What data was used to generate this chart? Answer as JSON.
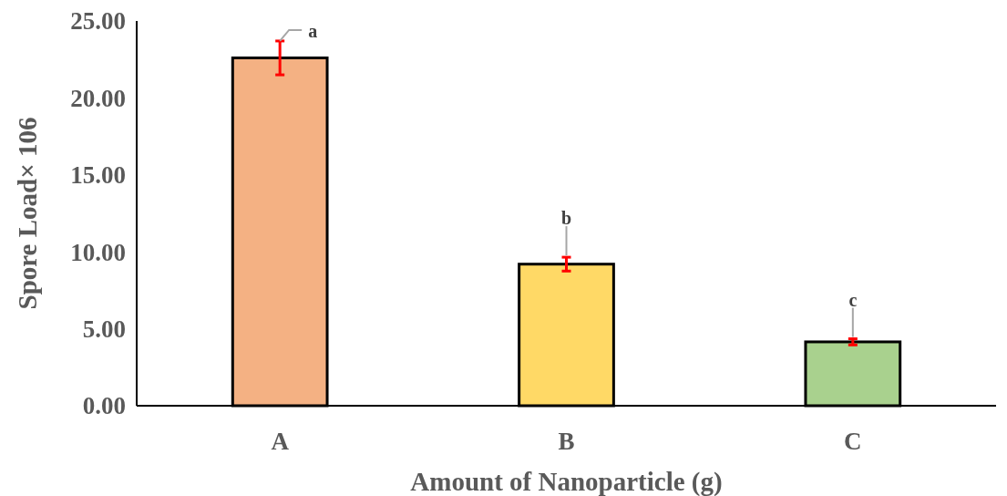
{
  "chart_data": {
    "type": "bar",
    "xlabel": "Amount of Nanoparticle (g)",
    "ylabel": "Spore Load× 106",
    "categories": [
      "A",
      "B",
      "C"
    ],
    "values": [
      22.6,
      9.2,
      4.15
    ],
    "colors": [
      "#f4b183",
      "#ffd966",
      "#a9d18e"
    ],
    "errors": [
      1.1,
      0.45,
      0.2
    ],
    "ylim": [
      0,
      25
    ],
    "yticks": [
      {
        "value": 0,
        "label": "0.00"
      },
      {
        "value": 5,
        "label": "5.00"
      },
      {
        "value": 10,
        "label": "10.00"
      },
      {
        "value": 15,
        "label": "15.00"
      },
      {
        "value": 20,
        "label": "20.00"
      },
      {
        "value": 25,
        "label": "25.00"
      }
    ],
    "annotations": [
      {
        "text": "a",
        "x": "A",
        "y": 23.7
      },
      {
        "text": "b",
        "x": "B",
        "y": 9.65
      },
      {
        "text": "c",
        "x": "C",
        "y": 4.35
      }
    ]
  }
}
